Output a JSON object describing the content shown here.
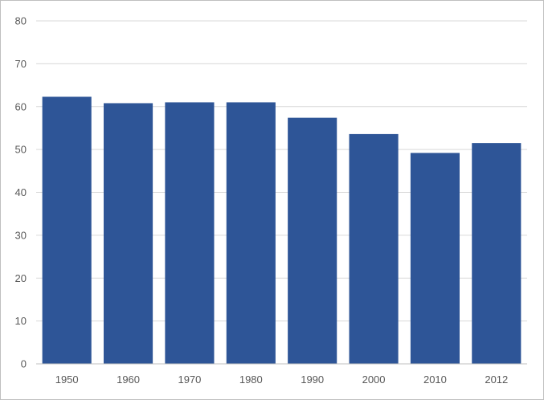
{
  "chart_data": {
    "type": "bar",
    "categories": [
      "1950",
      "1960",
      "1970",
      "1980",
      "1990",
      "2000",
      "2010",
      "2012"
    ],
    "values": [
      62.3,
      60.8,
      61.0,
      61.0,
      57.4,
      53.6,
      49.2,
      51.5
    ],
    "title": "",
    "xlabel": "",
    "ylabel": "",
    "ylim": [
      0,
      80
    ],
    "yticks": [
      "0",
      "10",
      "20",
      "30",
      "40",
      "50",
      "60",
      "70",
      "80"
    ],
    "grid": true,
    "legend": "none",
    "colors": {
      "bar": "#2e5597",
      "grid": "#d9d9d9",
      "axis": "#bfbfbf",
      "text": "#595959"
    }
  }
}
